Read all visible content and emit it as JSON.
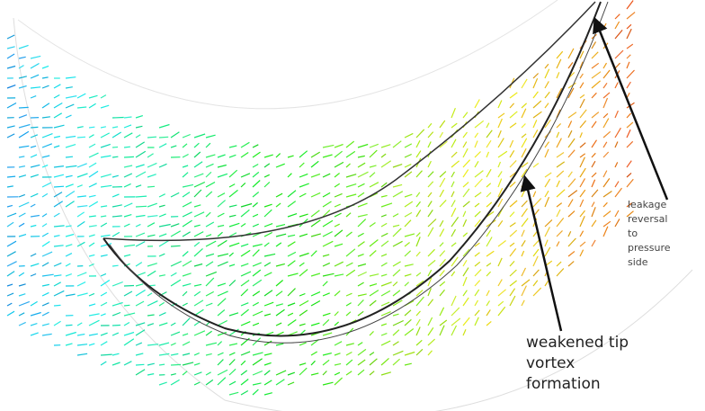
{
  "annotations": [
    {
      "lines": [
        "leakage",
        "reversal",
        "to",
        "pressure",
        "side"
      ]
    },
    {
      "lines": [
        "weakened tip",
        "vortex",
        "formation"
      ]
    }
  ]
}
